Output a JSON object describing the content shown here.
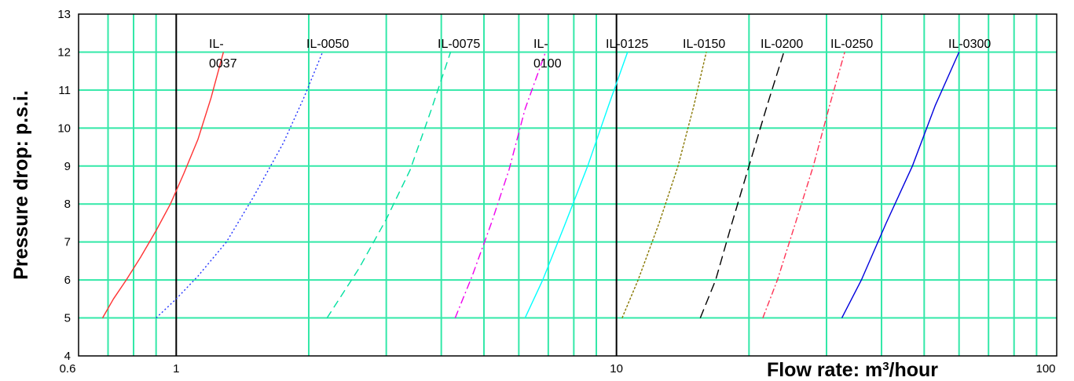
{
  "chart_data": {
    "type": "line",
    "title": "",
    "xlabel": "Flow rate: m",
    "xlabel_sup": "3",
    "xlabel_suffix": "/hour",
    "ylabel": "Pressure drop: p.s.i.",
    "xscale": "log",
    "xlim": [
      0.6,
      100
    ],
    "ylim": [
      4,
      13
    ],
    "grid": true,
    "x_ticks": [
      "0.6",
      "1",
      "10",
      "100"
    ],
    "y_ticks": [
      "4",
      "5",
      "6",
      "7",
      "8",
      "9",
      "10",
      "11",
      "12",
      "13"
    ],
    "series": [
      {
        "name": "IL-0037",
        "label_lines": [
          "IL-",
          "0037"
        ],
        "color": "#ff3333",
        "dash": "",
        "x": [
          0.68,
          0.72,
          0.77,
          0.83,
          0.9,
          0.97,
          1.04,
          1.12,
          1.2,
          1.28
        ],
        "y": [
          5,
          5.5,
          6,
          6.6,
          7.3,
          8,
          8.8,
          9.7,
          10.8,
          12
        ]
      },
      {
        "name": "IL-0050",
        "label_lines": [
          "IL-0050"
        ],
        "color": "#2233ff",
        "dash": "2,3",
        "x": [
          0.9,
          1.0,
          1.12,
          1.3,
          1.5,
          1.75,
          1.95,
          2.15
        ],
        "y": [
          5,
          5.5,
          6.1,
          7,
          8.2,
          9.6,
          10.8,
          12
        ]
      },
      {
        "name": "IL-0075",
        "label_lines": [
          "IL-0075"
        ],
        "color": "#00e0a0",
        "dash": "10,6",
        "x": [
          2.2,
          2.6,
          3.0,
          3.4,
          3.8,
          4.2
        ],
        "y": [
          5,
          6.3,
          7.6,
          8.9,
          10.5,
          12
        ]
      },
      {
        "name": "IL-0100",
        "label_lines": [
          "IL-",
          "0100"
        ],
        "color": "#ee00ee",
        "dash": "10,4,2,4",
        "x": [
          4.3,
          4.7,
          5.2,
          5.7,
          6.2,
          6.9
        ],
        "y": [
          5,
          6.1,
          7.5,
          8.9,
          10.5,
          12
        ]
      },
      {
        "name": "IL-0125",
        "label_lines": [
          "IL-0125"
        ],
        "color": "#00ffff",
        "dash": "",
        "x": [
          6.2,
          6.8,
          7.6,
          8.6,
          9.6,
          10.6
        ],
        "y": [
          5,
          6,
          7.4,
          9,
          10.6,
          12
        ]
      },
      {
        "name": "IL-0150",
        "label_lines": [
          "IL-0150"
        ],
        "color": "#887700",
        "dash": "3,2",
        "x": [
          10.3,
          11.2,
          12.5,
          13.8,
          15.0,
          16.0
        ],
        "y": [
          5,
          6,
          7.5,
          9,
          10.6,
          12
        ]
      },
      {
        "name": "IL-0200",
        "label_lines": [
          "IL-0200"
        ],
        "color": "#000000",
        "dash": "12,6",
        "x": [
          15.5,
          16.8,
          18.3,
          20.0,
          22.0,
          24.0
        ],
        "y": [
          5,
          6,
          7.5,
          9,
          10.6,
          12
        ]
      },
      {
        "name": "IL-0250",
        "label_lines": [
          "IL-0250"
        ],
        "color": "#ff3355",
        "dash": "8,3,2,3",
        "x": [
          21.5,
          23.2,
          25.5,
          28.0,
          30.5,
          33.0
        ],
        "y": [
          5,
          6,
          7.5,
          9,
          10.6,
          12
        ]
      },
      {
        "name": "IL-0300",
        "label_lines": [
          "IL-0300"
        ],
        "color": "#0000dd",
        "dash": "",
        "x": [
          32.5,
          36.0,
          41.0,
          47.0,
          53.0,
          60.0
        ],
        "y": [
          5,
          6,
          7.5,
          9,
          10.6,
          12
        ]
      }
    ]
  }
}
